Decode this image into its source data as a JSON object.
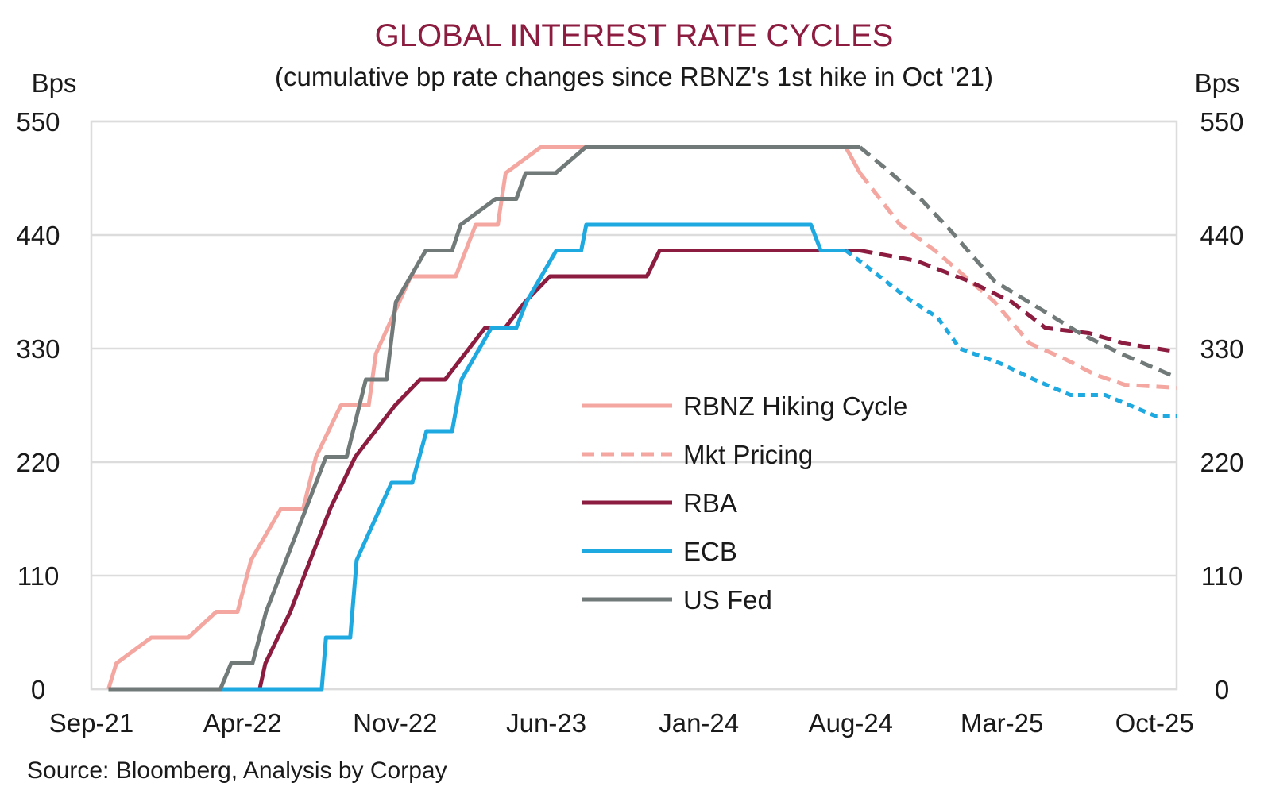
{
  "chart_data": {
    "type": "line",
    "title": "GLOBAL INTEREST RATE CYCLES",
    "subtitle": "(cumulative bp rate changes since RBNZ's 1st hike in Oct '21)",
    "ylabel_left": "Bps",
    "ylabel_right": "Bps",
    "ylim": [
      0,
      550
    ],
    "yticks": [
      0,
      110,
      220,
      330,
      440,
      550
    ],
    "xlim": [
      "2021-09",
      "2025-11"
    ],
    "xticks": [
      "Sep-21",
      "Apr-22",
      "Nov-22",
      "Jun-23",
      "Jan-24",
      "Aug-24",
      "Mar-25",
      "Oct-25"
    ],
    "grid": "horizontal",
    "legend_position": "center",
    "source": "Source: Bloomberg, Analysis by Corpay",
    "series": [
      {
        "name": "RBNZ Hiking Cycle",
        "color": "#f4a7a0",
        "style": "solid",
        "points": [
          [
            "2021-09-25",
            0
          ],
          [
            "2021-10-06",
            25
          ],
          [
            "2021-11-24",
            50
          ],
          [
            "2022-01-15",
            50
          ],
          [
            "2022-02-23",
            75
          ],
          [
            "2022-03-25",
            75
          ],
          [
            "2022-04-13",
            125
          ],
          [
            "2022-05-25",
            175
          ],
          [
            "2022-06-25",
            175
          ],
          [
            "2022-07-13",
            225
          ],
          [
            "2022-08-17",
            275
          ],
          [
            "2022-09-25",
            275
          ],
          [
            "2022-10-05",
            325
          ],
          [
            "2022-11-23",
            400
          ],
          [
            "2023-01-25",
            400
          ],
          [
            "2023-02-22",
            450
          ],
          [
            "2023-03-25",
            450
          ],
          [
            "2023-04-05",
            500
          ],
          [
            "2023-05-24",
            525
          ],
          [
            "2024-07-25",
            525
          ],
          [
            "2024-08-14",
            500
          ]
        ]
      },
      {
        "name": "Mkt Pricing",
        "color": "#f4a7a0",
        "style": "dashed",
        "points": [
          [
            "2024-08-14",
            500
          ],
          [
            "2024-10-09",
            450
          ],
          [
            "2024-11-27",
            425
          ],
          [
            "2025-02-19",
            375
          ],
          [
            "2025-04-09",
            335
          ],
          [
            "2025-05-28",
            320
          ],
          [
            "2025-07-09",
            305
          ],
          [
            "2025-08-20",
            295
          ],
          [
            "2025-11-01",
            292
          ]
        ]
      },
      {
        "name": "RBA",
        "color": "#8c1d40",
        "style": "solid",
        "points": [
          [
            "2021-09-25",
            0
          ],
          [
            "2022-04-25",
            0
          ],
          [
            "2022-05-03",
            25
          ],
          [
            "2022-06-07",
            75
          ],
          [
            "2022-07-05",
            125
          ],
          [
            "2022-08-02",
            175
          ],
          [
            "2022-09-06",
            225
          ],
          [
            "2022-10-04",
            250
          ],
          [
            "2022-11-01",
            275
          ],
          [
            "2022-12-06",
            300
          ],
          [
            "2023-01-10",
            300
          ],
          [
            "2023-02-07",
            325
          ],
          [
            "2023-03-07",
            350
          ],
          [
            "2023-04-04",
            350
          ],
          [
            "2023-05-02",
            375
          ],
          [
            "2023-06-06",
            400
          ],
          [
            "2023-10-20",
            400
          ],
          [
            "2023-11-07",
            425
          ],
          [
            "2024-08-14",
            425
          ]
        ]
      },
      {
        "name": "RBA",
        "color": "#8c1d40",
        "style": "dashed",
        "points": [
          [
            "2024-08-14",
            425
          ],
          [
            "2024-11-01",
            415
          ],
          [
            "2025-01-15",
            395
          ],
          [
            "2025-03-15",
            375
          ],
          [
            "2025-05-01",
            350
          ],
          [
            "2025-07-01",
            345
          ],
          [
            "2025-08-20",
            335
          ],
          [
            "2025-11-01",
            327
          ]
        ]
      },
      {
        "name": "ECB",
        "color": "#1fa9e1",
        "style": "solid",
        "points": [
          [
            "2021-09-25",
            0
          ],
          [
            "2022-04-25",
            0
          ],
          [
            "2022-07-21",
            0
          ],
          [
            "2022-07-27",
            50
          ],
          [
            "2022-08-30",
            50
          ],
          [
            "2022-09-08",
            125
          ],
          [
            "2022-10-27",
            200
          ],
          [
            "2022-11-25",
            200
          ],
          [
            "2022-12-15",
            250
          ],
          [
            "2023-01-20",
            250
          ],
          [
            "2023-02-02",
            300
          ],
          [
            "2023-03-16",
            350
          ],
          [
            "2023-04-20",
            350
          ],
          [
            "2023-05-04",
            375
          ],
          [
            "2023-06-15",
            425
          ],
          [
            "2023-07-20",
            425
          ],
          [
            "2023-07-27",
            450
          ],
          [
            "2024-06-06",
            450
          ],
          [
            "2024-06-20",
            425
          ],
          [
            "2024-07-25",
            425
          ]
        ]
      },
      {
        "name": "ECB",
        "color": "#1fa9e1",
        "style": "dashed",
        "points": [
          [
            "2024-07-25",
            425
          ],
          [
            "2024-09-01",
            405
          ],
          [
            "2024-10-17",
            380
          ],
          [
            "2024-12-01",
            360
          ],
          [
            "2025-01-01",
            330
          ],
          [
            "2025-03-01",
            315
          ],
          [
            "2025-04-15",
            300
          ],
          [
            "2025-06-05",
            285
          ],
          [
            "2025-07-24",
            285
          ],
          [
            "2025-10-01",
            265
          ],
          [
            "2025-11-01",
            265
          ]
        ]
      },
      {
        "name": "US Fed",
        "color": "#717a79",
        "style": "solid",
        "points": [
          [
            "2021-09-25",
            0
          ],
          [
            "2022-03-01",
            0
          ],
          [
            "2022-03-16",
            25
          ],
          [
            "2022-04-15",
            25
          ],
          [
            "2022-05-04",
            75
          ],
          [
            "2022-06-15",
            150
          ],
          [
            "2022-07-27",
            225
          ],
          [
            "2022-08-25",
            225
          ],
          [
            "2022-09-21",
            300
          ],
          [
            "2022-10-20",
            300
          ],
          [
            "2022-11-02",
            375
          ],
          [
            "2022-12-14",
            425
          ],
          [
            "2023-01-20",
            425
          ],
          [
            "2023-02-01",
            450
          ],
          [
            "2023-03-22",
            475
          ],
          [
            "2023-04-20",
            475
          ],
          [
            "2023-05-03",
            500
          ],
          [
            "2023-06-14",
            500
          ],
          [
            "2023-07-26",
            525
          ],
          [
            "2024-08-14",
            525
          ]
        ]
      },
      {
        "name": "US Fed",
        "color": "#717a79",
        "style": "dashed",
        "points": [
          [
            "2024-08-14",
            525
          ],
          [
            "2024-09-18",
            505
          ],
          [
            "2024-11-07",
            475
          ],
          [
            "2024-12-18",
            445
          ],
          [
            "2025-02-19",
            395
          ],
          [
            "2025-04-20",
            370
          ],
          [
            "2025-06-18",
            345
          ],
          [
            "2025-08-15",
            325
          ],
          [
            "2025-11-01",
            302
          ]
        ]
      }
    ],
    "legend": [
      {
        "label": "RBNZ Hiking Cycle",
        "color": "#f4a7a0",
        "style": "solid"
      },
      {
        "label": "Mkt Pricing",
        "color": "#f4a7a0",
        "style": "dashed"
      },
      {
        "label": "RBA",
        "color": "#8c1d40",
        "style": "solid"
      },
      {
        "label": "ECB",
        "color": "#1fa9e1",
        "style": "solid"
      },
      {
        "label": "US Fed",
        "color": "#717a79",
        "style": "solid"
      }
    ]
  }
}
